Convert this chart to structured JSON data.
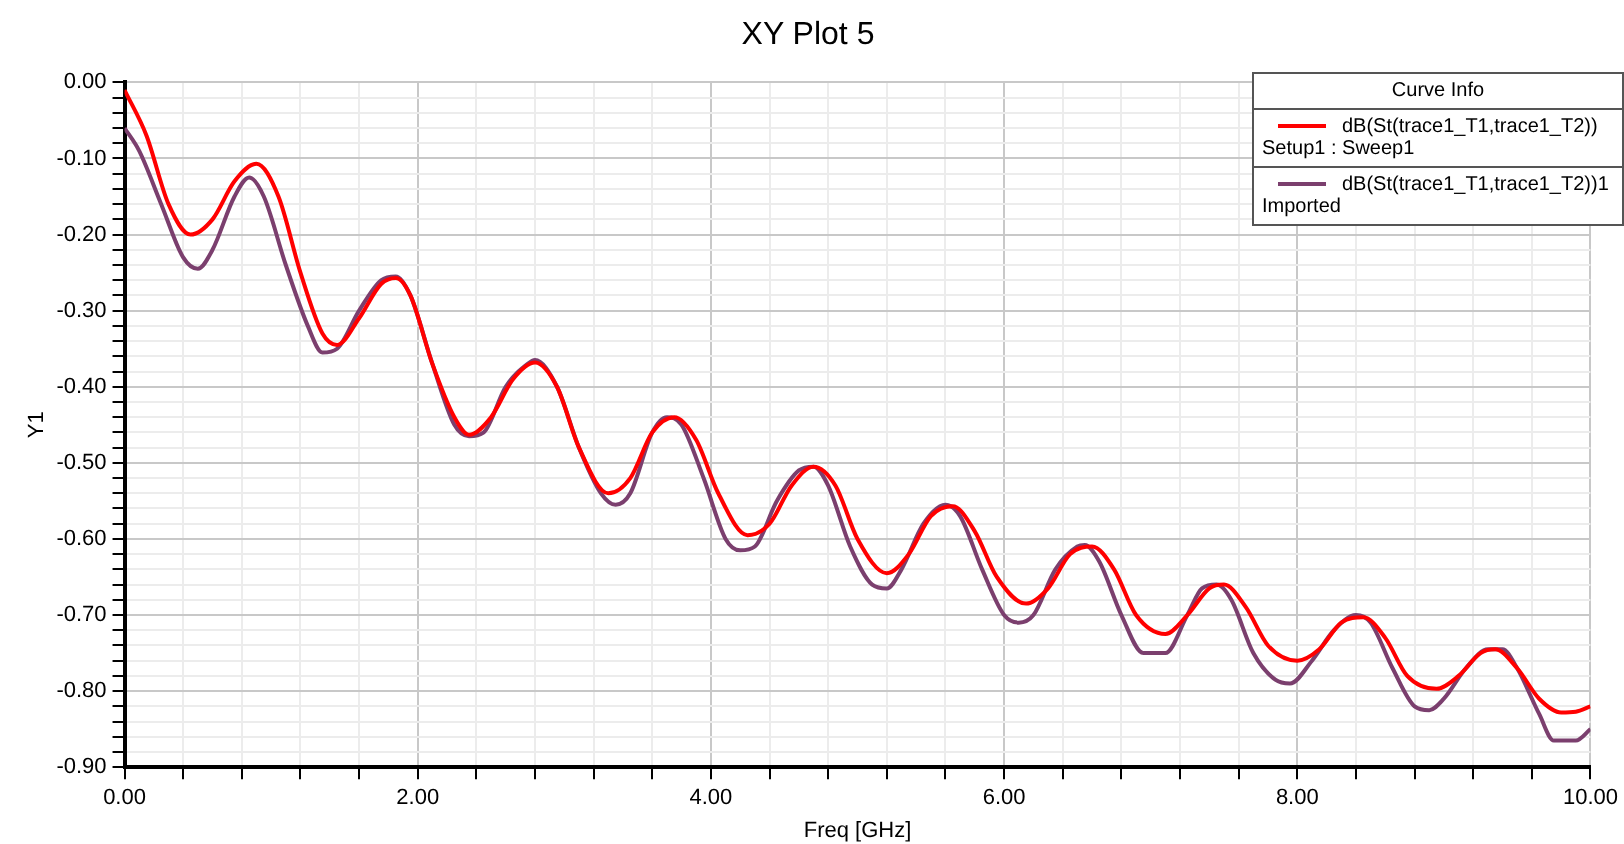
{
  "chart_data": {
    "type": "line",
    "title": "XY Plot 5",
    "xlabel": "Freq [GHz]",
    "ylabel": "Y1",
    "legend_title": "Curve Info",
    "legend": "top right",
    "grid": true,
    "marker": "none",
    "line_style": "solid",
    "xlim": [
      0,
      10
    ],
    "ylim": [
      -0.9,
      0
    ],
    "xticks": [
      {
        "value": 0,
        "label": "0.00"
      },
      {
        "value": 0.4,
        "label": null
      },
      {
        "value": 0.8,
        "label": null
      },
      {
        "value": 1.2,
        "label": null
      },
      {
        "value": 1.6,
        "label": null
      },
      {
        "value": 2,
        "label": "2.00"
      },
      {
        "value": 2.4,
        "label": null
      },
      {
        "value": 2.8,
        "label": null
      },
      {
        "value": 3.2,
        "label": null
      },
      {
        "value": 3.6,
        "label": null
      },
      {
        "value": 4,
        "label": "4.00"
      },
      {
        "value": 4.4,
        "label": null
      },
      {
        "value": 4.8,
        "label": null
      },
      {
        "value": 5.2,
        "label": null
      },
      {
        "value": 5.6,
        "label": null
      },
      {
        "value": 6,
        "label": "6.00"
      },
      {
        "value": 6.4,
        "label": null
      },
      {
        "value": 6.8,
        "label": null
      },
      {
        "value": 7.2,
        "label": null
      },
      {
        "value": 7.6,
        "label": null
      },
      {
        "value": 8,
        "label": "8.00"
      },
      {
        "value": 8.4,
        "label": null
      },
      {
        "value": 8.8,
        "label": null
      },
      {
        "value": 9.2,
        "label": null
      },
      {
        "value": 9.6,
        "label": null
      },
      {
        "value": 10,
        "label": "10.00"
      }
    ],
    "yticks": [
      {
        "value": 0,
        "label": "0.00"
      },
      {
        "value": -0.02,
        "label": null
      },
      {
        "value": -0.04,
        "label": null
      },
      {
        "value": -0.06,
        "label": null
      },
      {
        "value": -0.08,
        "label": null
      },
      {
        "value": -0.1,
        "label": "-0.10"
      },
      {
        "value": -0.12,
        "label": null
      },
      {
        "value": -0.14,
        "label": null
      },
      {
        "value": -0.16,
        "label": null
      },
      {
        "value": -0.18,
        "label": null
      },
      {
        "value": -0.2,
        "label": "-0.20"
      },
      {
        "value": -0.22,
        "label": null
      },
      {
        "value": -0.24,
        "label": null
      },
      {
        "value": -0.26,
        "label": null
      },
      {
        "value": -0.28,
        "label": null
      },
      {
        "value": -0.3,
        "label": "-0.30"
      },
      {
        "value": -0.32,
        "label": null
      },
      {
        "value": -0.34,
        "label": null
      },
      {
        "value": -0.36,
        "label": null
      },
      {
        "value": -0.38,
        "label": null
      },
      {
        "value": -0.4,
        "label": "-0.40"
      },
      {
        "value": -0.42,
        "label": null
      },
      {
        "value": -0.44,
        "label": null
      },
      {
        "value": -0.46,
        "label": null
      },
      {
        "value": -0.48,
        "label": null
      },
      {
        "value": -0.5,
        "label": "-0.50"
      },
      {
        "value": -0.52,
        "label": null
      },
      {
        "value": -0.54,
        "label": null
      },
      {
        "value": -0.56,
        "label": null
      },
      {
        "value": -0.58,
        "label": null
      },
      {
        "value": -0.6,
        "label": "-0.60"
      },
      {
        "value": -0.62,
        "label": null
      },
      {
        "value": -0.64,
        "label": null
      },
      {
        "value": -0.66,
        "label": null
      },
      {
        "value": -0.68,
        "label": null
      },
      {
        "value": -0.7,
        "label": "-0.70"
      },
      {
        "value": -0.72,
        "label": null
      },
      {
        "value": -0.74,
        "label": null
      },
      {
        "value": -0.76,
        "label": null
      },
      {
        "value": -0.78,
        "label": null
      },
      {
        "value": -0.8,
        "label": "-0.80"
      },
      {
        "value": -0.82,
        "label": null
      },
      {
        "value": -0.84,
        "label": null
      },
      {
        "value": -0.86,
        "label": null
      },
      {
        "value": -0.88,
        "label": null
      },
      {
        "value": -0.9,
        "label": "-0.90"
      }
    ],
    "series": [
      {
        "name": "dB(St(trace1_T1,trace1_T2))\nSetup1 : Sweep1",
        "color": "#ff0000",
        "x": [
          0,
          0.15,
          0.3,
          0.45,
          0.6,
          0.75,
          0.9,
          1.05,
          1.2,
          1.35,
          1.45,
          1.6,
          1.75,
          1.85,
          1.95,
          2.1,
          2.25,
          2.35,
          2.5,
          2.65,
          2.8,
          2.95,
          3.1,
          3.3,
          3.45,
          3.6,
          3.75,
          3.9,
          4.05,
          4.25,
          4.4,
          4.55,
          4.7,
          4.85,
          5.0,
          5.2,
          5.35,
          5.5,
          5.65,
          5.8,
          5.95,
          6.15,
          6.3,
          6.45,
          6.6,
          6.75,
          6.9,
          7.1,
          7.25,
          7.4,
          7.5,
          7.65,
          7.8,
          8.0,
          8.15,
          8.3,
          8.45,
          8.6,
          8.75,
          8.95,
          9.1,
          9.25,
          9.35,
          9.5,
          9.65,
          9.8,
          9.9,
          10
        ],
        "values": [
          -0.01,
          -0.07,
          -0.16,
          -0.2,
          -0.18,
          -0.13,
          -0.107,
          -0.15,
          -0.25,
          -0.33,
          -0.345,
          -0.31,
          -0.265,
          -0.257,
          -0.28,
          -0.37,
          -0.44,
          -0.463,
          -0.44,
          -0.39,
          -0.368,
          -0.4,
          -0.48,
          -0.54,
          -0.52,
          -0.46,
          -0.44,
          -0.47,
          -0.54,
          -0.595,
          -0.58,
          -0.53,
          -0.505,
          -0.53,
          -0.6,
          -0.645,
          -0.62,
          -0.57,
          -0.557,
          -0.59,
          -0.65,
          -0.685,
          -0.665,
          -0.62,
          -0.61,
          -0.64,
          -0.7,
          -0.725,
          -0.7,
          -0.665,
          -0.66,
          -0.69,
          -0.74,
          -0.76,
          -0.745,
          -0.71,
          -0.703,
          -0.73,
          -0.78,
          -0.797,
          -0.78,
          -0.75,
          -0.745,
          -0.77,
          -0.81,
          -0.828,
          -0.827,
          -0.82
        ]
      },
      {
        "name": "dB(St(trace1_T1,trace1_T2))1\nImported",
        "color": "#7b3f6e",
        "x": [
          0,
          0.1,
          0.25,
          0.4,
          0.5,
          0.6,
          0.75,
          0.85,
          0.95,
          1.1,
          1.25,
          1.35,
          1.45,
          1.6,
          1.75,
          1.85,
          1.95,
          2.1,
          2.25,
          2.35,
          2.45,
          2.6,
          2.75,
          2.8,
          2.95,
          3.1,
          3.25,
          3.35,
          3.45,
          3.6,
          3.7,
          3.8,
          3.95,
          4.1,
          4.2,
          4.3,
          4.45,
          4.6,
          4.7,
          4.8,
          4.95,
          5.1,
          5.2,
          5.3,
          5.45,
          5.6,
          5.7,
          5.85,
          6.0,
          6.1,
          6.2,
          6.35,
          6.5,
          6.55,
          6.65,
          6.8,
          6.95,
          7.1,
          7.25,
          7.35,
          7.45,
          7.55,
          7.7,
          7.85,
          7.95,
          8.1,
          8.25,
          8.4,
          8.5,
          8.65,
          8.8,
          8.9,
          9.0,
          9.15,
          9.3,
          9.4,
          9.5,
          9.65,
          9.75,
          9.9,
          10
        ],
        "values": [
          -0.06,
          -0.09,
          -0.16,
          -0.23,
          -0.245,
          -0.22,
          -0.15,
          -0.125,
          -0.15,
          -0.24,
          -0.32,
          -0.355,
          -0.35,
          -0.3,
          -0.26,
          -0.255,
          -0.28,
          -0.37,
          -0.45,
          -0.465,
          -0.46,
          -0.4,
          -0.37,
          -0.365,
          -0.4,
          -0.48,
          -0.54,
          -0.555,
          -0.54,
          -0.46,
          -0.44,
          -0.45,
          -0.52,
          -0.6,
          -0.615,
          -0.61,
          -0.55,
          -0.51,
          -0.505,
          -0.53,
          -0.61,
          -0.66,
          -0.665,
          -0.64,
          -0.58,
          -0.555,
          -0.57,
          -0.64,
          -0.7,
          -0.71,
          -0.7,
          -0.64,
          -0.61,
          -0.608,
          -0.63,
          -0.7,
          -0.75,
          -0.75,
          -0.7,
          -0.665,
          -0.66,
          -0.68,
          -0.75,
          -0.785,
          -0.79,
          -0.76,
          -0.72,
          -0.7,
          -0.71,
          -0.77,
          -0.82,
          -0.825,
          -0.81,
          -0.77,
          -0.745,
          -0.745,
          -0.77,
          -0.83,
          -0.865,
          -0.865,
          -0.85
        ]
      }
    ]
  }
}
